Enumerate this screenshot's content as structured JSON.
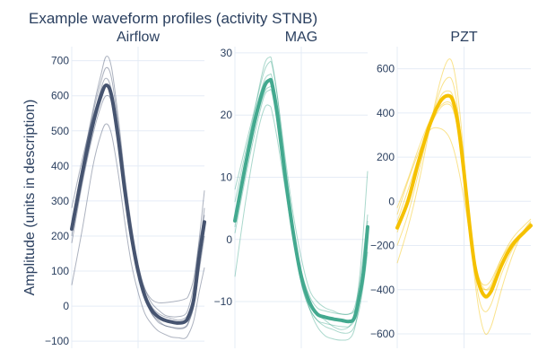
{
  "chart_data": {
    "type": "line",
    "title": "Example waveform profiles (activity STNB)",
    "ylabel": "Amplitude (units in description)",
    "grid": true,
    "legend": "none",
    "panels": [
      {
        "title": "Airflow",
        "color": "#465470",
        "ylim": [
          -120,
          740
        ],
        "xlim": [
          0,
          100
        ],
        "yticks": [
          -100,
          0,
          100,
          200,
          300,
          400,
          500,
          600,
          700
        ],
        "ytick_labels": [
          "−100",
          "0",
          "100",
          "200",
          "300",
          "400",
          "500",
          "600",
          "700"
        ],
        "mean": {
          "x": [
            0,
            8,
            16,
            22,
            26,
            30,
            35,
            40,
            45,
            50,
            55,
            60,
            65,
            70,
            75,
            80,
            85,
            88,
            92,
            96,
            100
          ],
          "y": [
            220,
            380,
            520,
            600,
            630,
            600,
            480,
            330,
            200,
            100,
            30,
            -10,
            -30,
            -40,
            -45,
            -48,
            -45,
            -30,
            20,
            140,
            240
          ]
        },
        "traces": [
          {
            "x": [
              0,
              8,
              16,
              22,
              26,
              30,
              35,
              40,
              45,
              50,
              55,
              60,
              65,
              70,
              75,
              80,
              85,
              88,
              92,
              96,
              100
            ],
            "y": [
              200,
              400,
              560,
              660,
              712,
              680,
              540,
              370,
              230,
              120,
              50,
              10,
              -10,
              -25,
              -30,
              -30,
              -25,
              -5,
              60,
              190,
              330
            ]
          },
          {
            "x": [
              0,
              8,
              16,
              22,
              26,
              30,
              35,
              40,
              45,
              50,
              55,
              60,
              65,
              70,
              75,
              80,
              85,
              88,
              92,
              96,
              100
            ],
            "y": [
              240,
              400,
              550,
              640,
              680,
              650,
              520,
              360,
              220,
              110,
              40,
              0,
              -20,
              -30,
              -35,
              -40,
              -35,
              -20,
              30,
              150,
              280
            ]
          },
          {
            "x": [
              0,
              8,
              16,
              22,
              26,
              30,
              35,
              40,
              45,
              50,
              55,
              60,
              65,
              70,
              75,
              80,
              85,
              88,
              92,
              96,
              100
            ],
            "y": [
              60,
              220,
              400,
              490,
              520,
              490,
              380,
              240,
              120,
              40,
              -20,
              -50,
              -70,
              -80,
              -88,
              -90,
              -92,
              -80,
              -40,
              40,
              110
            ]
          },
          {
            "x": [
              0,
              8,
              16,
              22,
              26,
              30,
              35,
              40,
              45,
              50,
              55,
              60,
              65,
              70,
              75,
              80,
              85,
              88,
              92,
              96,
              100
            ],
            "y": [
              180,
              350,
              490,
              570,
              600,
              580,
              460,
              320,
              190,
              90,
              20,
              -20,
              -45,
              -55,
              -60,
              -62,
              -60,
              -45,
              0,
              100,
              200
            ]
          },
          {
            "x": [
              0,
              8,
              16,
              22,
              26,
              30,
              35,
              40,
              45,
              50,
              55,
              60,
              65,
              70,
              75,
              80,
              85,
              88,
              92,
              96,
              100
            ],
            "y": [
              280,
              420,
              540,
              610,
              630,
              600,
              480,
              340,
              210,
              110,
              50,
              20,
              10,
              10,
              12,
              15,
              20,
              30,
              80,
              180,
              260
            ]
          },
          {
            "x": [
              0,
              8,
              16,
              22,
              26,
              30,
              35,
              40,
              45,
              50,
              55,
              60,
              65,
              70,
              75,
              80,
              85,
              88,
              92,
              96,
              100
            ],
            "y": [
              230,
              390,
              530,
              620,
              650,
              615,
              495,
              345,
              210,
              100,
              30,
              -20,
              -40,
              -55,
              -60,
              -65,
              -62,
              -48,
              5,
              130,
              230
            ]
          }
        ]
      },
      {
        "title": "MAG",
        "color": "#43a98f",
        "ylim": [
          -17.5,
          31
        ],
        "xlim": [
          0,
          100
        ],
        "yticks": [
          -10,
          0,
          10,
          20,
          30
        ],
        "ytick_labels": [
          "−10",
          "0",
          "10",
          "20",
          "30"
        ],
        "mean": {
          "x": [
            0,
            8,
            16,
            22,
            26,
            28,
            32,
            38,
            44,
            50,
            56,
            62,
            68,
            74,
            80,
            86,
            90,
            94,
            97,
            100
          ],
          "y": [
            3,
            12,
            20,
            24.5,
            25.6,
            25,
            20,
            10,
            1,
            -6,
            -10,
            -12,
            -12.5,
            -12.8,
            -13,
            -13.2,
            -12.6,
            -9,
            -5,
            2
          ]
        },
        "traces": [
          {
            "x": [
              0,
              8,
              16,
              22,
              26,
              28,
              32,
              38,
              44,
              50,
              56,
              62,
              68,
              74,
              80,
              86,
              90,
              94,
              97,
              100
            ],
            "y": [
              -6,
              6,
              16,
              21,
              21.5,
              20.5,
              16,
              8,
              0,
              -6,
              -10,
              -12,
              -13,
              -14,
              -14.5,
              -14,
              -12,
              -6,
              2,
              11
            ]
          },
          {
            "x": [
              0,
              8,
              16,
              22,
              26,
              28,
              32,
              38,
              44,
              50,
              56,
              62,
              68,
              74,
              80,
              86,
              90,
              94,
              97,
              100
            ],
            "y": [
              2,
              13,
              22,
              28,
              29.3,
              28.5,
              23,
              12,
              2,
              -6,
              -11,
              -14,
              -15.5,
              -16,
              -16.2,
              -16,
              -14.5,
              -10,
              -5,
              3
            ]
          },
          {
            "x": [
              0,
              8,
              16,
              22,
              26,
              28,
              32,
              38,
              44,
              50,
              56,
              62,
              68,
              74,
              80,
              86,
              90,
              94,
              97,
              100
            ],
            "y": [
              6,
              14,
              21,
              25.5,
              26.5,
              26,
              21,
              11,
              2,
              -5,
              -9,
              -11,
              -11.5,
              -11.8,
              -12,
              -12,
              -11,
              -7,
              -2,
              4
            ]
          },
          {
            "x": [
              0,
              8,
              16,
              22,
              26,
              28,
              32,
              38,
              44,
              50,
              56,
              62,
              68,
              74,
              80,
              86,
              90,
              94,
              97,
              100
            ],
            "y": [
              4,
              12,
              19,
              23.5,
              24.5,
              24,
              19,
              10,
              1,
              -7,
              -11,
              -13,
              -13.5,
              -13.8,
              -14,
              -14,
              -13,
              -10,
              -6,
              0
            ]
          },
          {
            "x": [
              0,
              8,
              16,
              22,
              26,
              28,
              32,
              38,
              44,
              50,
              56,
              62,
              68,
              74,
              80,
              86,
              90,
              94,
              97,
              100
            ],
            "y": [
              8,
              15,
              22,
              27,
              28.5,
              28,
              23,
              13,
              4,
              -3,
              -8,
              -10,
              -11,
              -11.5,
              -12,
              -12,
              -11.5,
              -9,
              -5,
              1
            ]
          },
          {
            "x": [
              0,
              8,
              16,
              22,
              26,
              28,
              32,
              38,
              44,
              50,
              56,
              62,
              68,
              74,
              80,
              86,
              90,
              94,
              97,
              100
            ],
            "y": [
              1,
              10,
              18,
              23,
              24,
              23.5,
              18.5,
              9,
              0,
              -7,
              -11,
              -13,
              -14,
              -14.5,
              -15,
              -15,
              -14,
              -11,
              -7,
              -2
            ]
          }
        ]
      },
      {
        "title": "PZT",
        "color": "#f5c100",
        "ylim": [
          -665,
          700
        ],
        "xlim": [
          0,
          100
        ],
        "yticks": [
          -600,
          -400,
          -200,
          0,
          200,
          400,
          600
        ],
        "ytick_labels": [
          "−600",
          "−400",
          "−200",
          "0",
          "200",
          "400",
          "600"
        ],
        "mean": {
          "x": [
            0,
            8,
            16,
            24,
            32,
            38,
            42,
            46,
            50,
            54,
            58,
            62,
            66,
            70,
            74,
            78,
            82,
            86,
            90,
            95,
            100
          ],
          "y": [
            -120,
            0,
            180,
            340,
            450,
            478,
            450,
            330,
            130,
            -100,
            -290,
            -390,
            -430,
            -410,
            -350,
            -290,
            -240,
            -200,
            -170,
            -140,
            -110
          ]
        },
        "traces": [
          {
            "x": [
              0,
              8,
              16,
              24,
              32,
              38,
              42,
              46,
              50,
              54,
              58,
              62,
              66,
              70,
              74,
              78,
              82,
              86,
              90,
              95,
              100
            ],
            "y": [
              -280,
              -120,
              80,
              320,
              540,
              640,
              610,
              450,
              200,
              -100,
              -350,
              -520,
              -600,
              -570,
              -490,
              -400,
              -320,
              -250,
              -190,
              -130,
              -90
            ]
          },
          {
            "x": [
              0,
              8,
              16,
              24,
              32,
              38,
              42,
              46,
              50,
              54,
              58,
              62,
              66,
              70,
              74,
              78,
              82,
              86,
              90,
              95,
              100
            ],
            "y": [
              -90,
              50,
              200,
              330,
              420,
              440,
              410,
              300,
              120,
              -80,
              -260,
              -360,
              -400,
              -390,
              -340,
              -280,
              -230,
              -190,
              -160,
              -130,
              -100
            ]
          },
          {
            "x": [
              0,
              8,
              16,
              24,
              32,
              38,
              42,
              46,
              50,
              54,
              58,
              62,
              66,
              70,
              74,
              78,
              82,
              86,
              90,
              95,
              100
            ],
            "y": [
              -140,
              -10,
              160,
              330,
              470,
              500,
              470,
              340,
              140,
              -90,
              -290,
              -400,
              -440,
              -420,
              -360,
              -300,
              -245,
              -200,
              -165,
              -130,
              -100
            ]
          },
          {
            "x": [
              0,
              8,
              16,
              24,
              32,
              38,
              42,
              46,
              50,
              54,
              58,
              62,
              66,
              70,
              74,
              78,
              82,
              86,
              90,
              95,
              100
            ],
            "y": [
              -60,
              90,
              220,
              320,
              330,
              300,
              240,
              140,
              10,
              -140,
              -280,
              -360,
              -380,
              -360,
              -310,
              -260,
              -220,
              -185,
              -160,
              -140,
              -120
            ]
          },
          {
            "x": [
              0,
              8,
              16,
              24,
              32,
              38,
              42,
              46,
              50,
              54,
              58,
              62,
              66,
              70,
              74,
              78,
              82,
              86,
              90,
              95,
              100
            ],
            "y": [
              -200,
              -60,
              130,
              330,
              500,
              560,
              530,
              380,
              150,
              -100,
              -320,
              -460,
              -500,
              -470,
              -400,
              -330,
              -270,
              -220,
              -180,
              -135,
              -95
            ]
          },
          {
            "x": [
              0,
              8,
              16,
              24,
              32,
              38,
              42,
              46,
              50,
              54,
              58,
              62,
              66,
              70,
              74,
              78,
              82,
              86,
              90,
              95,
              100
            ],
            "y": [
              -30,
              100,
              240,
              360,
              430,
              450,
              420,
              300,
              100,
              -120,
              -300,
              -380,
              -400,
              -380,
              -320,
              -260,
              -210,
              -170,
              -140,
              -110,
              -80
            ]
          }
        ]
      }
    ]
  }
}
